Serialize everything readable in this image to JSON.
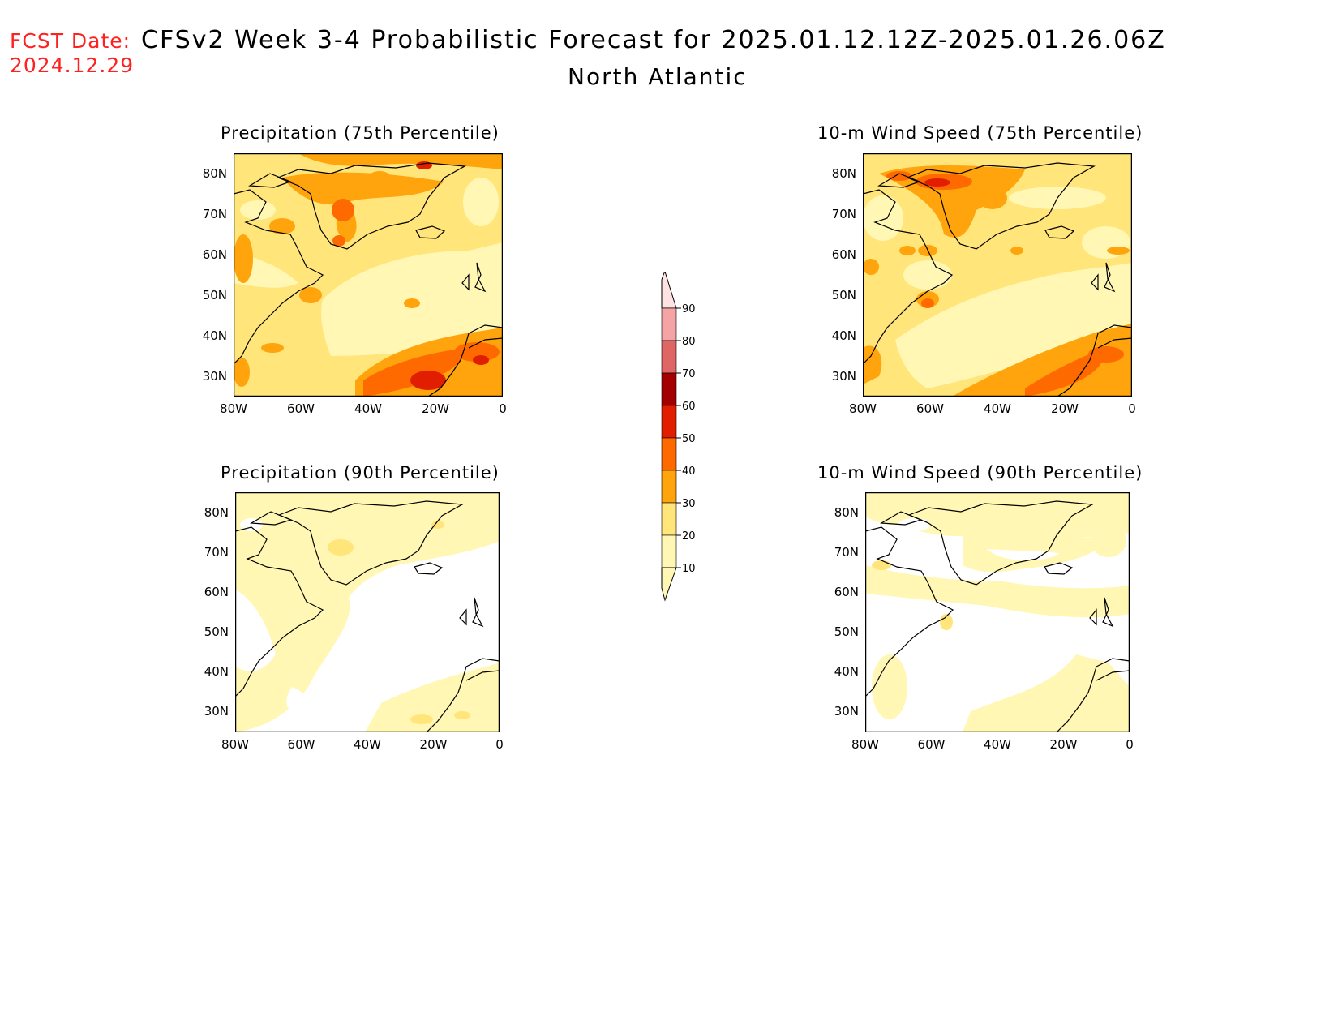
{
  "header": {
    "fcst_label": "FCST Date:",
    "fcst_date": "2024.12.29",
    "title": "CFSv2 Week 3-4 Probabilistic Forecast for 2025.01.12.12Z-2025.01.26.06Z",
    "subtitle": "North Atlantic"
  },
  "panels": [
    {
      "id": "precip75",
      "title": "Precipitation (75th Percentile)"
    },
    {
      "id": "wind75",
      "title": "10-m Wind Speed (75th Percentile)"
    },
    {
      "id": "precip90",
      "title": "Precipitation (90th Percentile)"
    },
    {
      "id": "wind90",
      "title": "10-m Wind Speed (90th Percentile)"
    }
  ],
  "axes": {
    "lat_labels": [
      "80N",
      "70N",
      "60N",
      "50N",
      "40N",
      "30N"
    ],
    "lon_labels": [
      "80W",
      "60W",
      "40W",
      "20W",
      "0"
    ]
  },
  "colorbar": {
    "labels": [
      "90",
      "80",
      "70",
      "60",
      "50",
      "40",
      "30",
      "20",
      "10"
    ],
    "colors": {
      "c10": "#fff7b3",
      "c20": "#ffe57a",
      "c30": "#ffa40c",
      "c40": "#ff6a00",
      "c50": "#e11f00",
      "c60": "#a50000",
      "c70": "#e06666",
      "c80": "#f4a4a4",
      "c90": "#ffe2e2"
    }
  }
}
